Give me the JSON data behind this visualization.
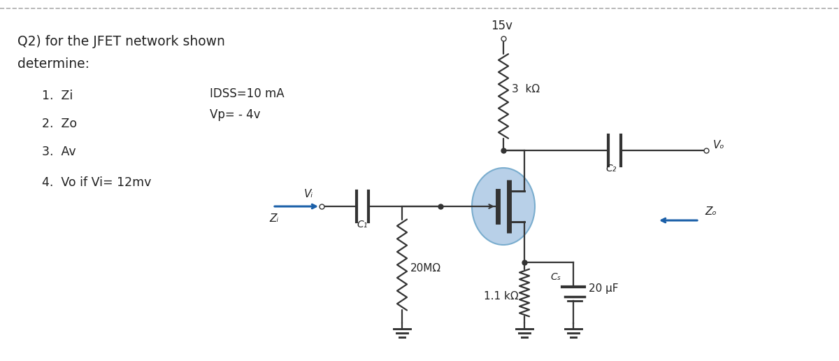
{
  "bg_white": "#ffffff",
  "top_border_color": "#aaaaaa",
  "text_color": "#222222",
  "wire_color": "#333333",
  "jfet_circle_color": "#b8d0e8",
  "jfet_edge_color": "#7aadce",
  "zi_arrow_color": "#1a5fa8",
  "zo_arrow_color": "#1a5fa8",
  "title_line1": "Q2) for the JFET network shown",
  "title_line2": "determine:",
  "list_items": [
    "1.  Zi",
    "2.  Zo",
    "3.  Av",
    "4.  Vo if Vi= 12mv"
  ],
  "params_line1": "IDSS=10 mA",
  "params_line2": "Vp= - 4v",
  "vdd_label": "15v",
  "rd_label": "3  kΩ",
  "rg_label": "20MΩ",
  "rs_label": "1.1 kΩ",
  "c1_label": "C₁",
  "c2_label": "C₂",
  "cs_label": "Cₛ",
  "cs_value": "20 μF",
  "vi_label": "Vᵢ",
  "vo_label": "Vₒ",
  "zi_label": "Zᵢ",
  "zo_label": "Zₒ"
}
